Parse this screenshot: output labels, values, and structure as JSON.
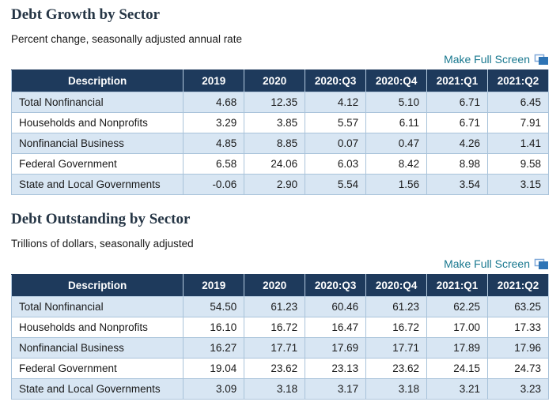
{
  "accent": {
    "header_bg": "#1e3a5c",
    "row_alt_bg": "#d8e6f3",
    "link_color": "#19788f",
    "border_color": "#a9c3da",
    "icon_blue": "#2e74b5"
  },
  "icons": {
    "fullscreen_icon": "overlapping-windows"
  },
  "sections": [
    {
      "title": "Debt Growth by Sector",
      "subtitle": "Percent change, seasonally adjusted annual rate",
      "fullscreen_label": "Make Full Screen",
      "columns": [
        "Description",
        "2019",
        "2020",
        "2020:Q3",
        "2020:Q4",
        "2021:Q1",
        "2021:Q2"
      ],
      "rows": [
        {
          "label": "Total Nonfinancial",
          "values": [
            "4.68",
            "12.35",
            "4.12",
            "5.10",
            "6.71",
            "6.45"
          ]
        },
        {
          "label": "Households and Nonprofits",
          "values": [
            "3.29",
            "3.85",
            "5.57",
            "6.11",
            "6.71",
            "7.91"
          ]
        },
        {
          "label": "Nonfinancial Business",
          "values": [
            "4.85",
            "8.85",
            "0.07",
            "0.47",
            "4.26",
            "1.41"
          ]
        },
        {
          "label": "Federal Government",
          "values": [
            "6.58",
            "24.06",
            "6.03",
            "8.42",
            "8.98",
            "9.58"
          ]
        },
        {
          "label": "State and Local Governments",
          "values": [
            "-0.06",
            "2.90",
            "5.54",
            "1.56",
            "3.54",
            "3.15"
          ]
        }
      ]
    },
    {
      "title": "Debt Outstanding by Sector",
      "subtitle": "Trillions of dollars, seasonally adjusted",
      "fullscreen_label": "Make Full Screen",
      "columns": [
        "Description",
        "2019",
        "2020",
        "2020:Q3",
        "2020:Q4",
        "2021:Q1",
        "2021:Q2"
      ],
      "rows": [
        {
          "label": "Total Nonfinancial",
          "values": [
            "54.50",
            "61.23",
            "60.46",
            "61.23",
            "62.25",
            "63.25"
          ]
        },
        {
          "label": "Households and Nonprofits",
          "values": [
            "16.10",
            "16.72",
            "16.47",
            "16.72",
            "17.00",
            "17.33"
          ]
        },
        {
          "label": "Nonfinancial Business",
          "values": [
            "16.27",
            "17.71",
            "17.69",
            "17.71",
            "17.89",
            "17.96"
          ]
        },
        {
          "label": "Federal Government",
          "values": [
            "19.04",
            "23.62",
            "23.13",
            "23.62",
            "24.15",
            "24.73"
          ]
        },
        {
          "label": "State and Local Governments",
          "values": [
            "3.09",
            "3.18",
            "3.17",
            "3.18",
            "3.21",
            "3.23"
          ]
        }
      ]
    }
  ]
}
